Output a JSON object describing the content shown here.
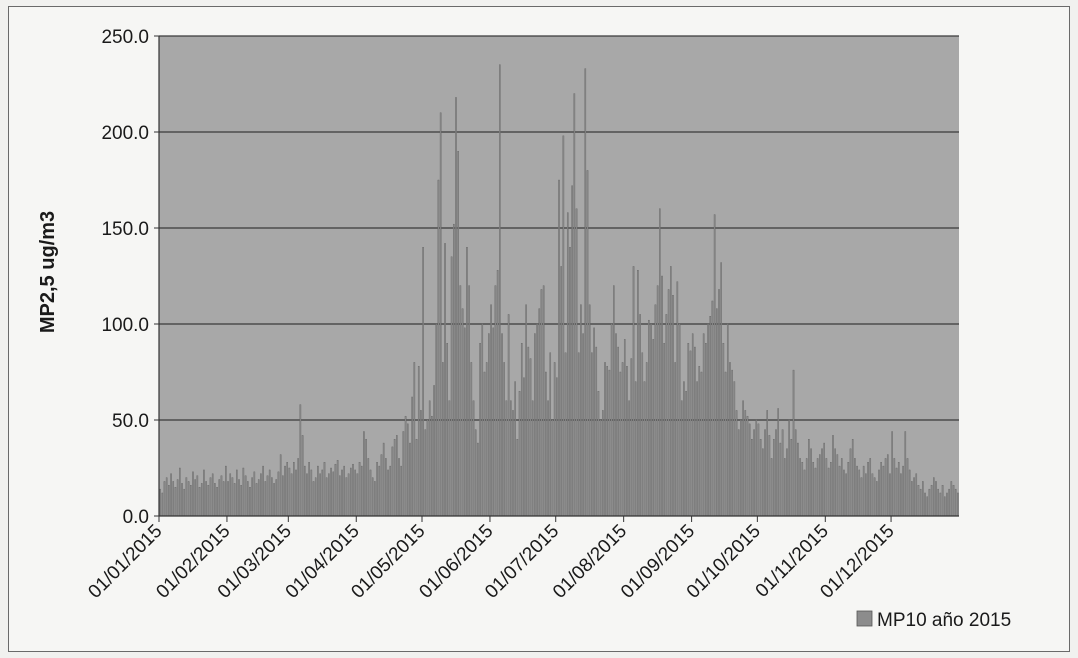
{
  "chart_data": {
    "type": "bar",
    "title": "",
    "xlabel": "",
    "ylabel": "MP2,5 ug/m3",
    "ylim": [
      0,
      250
    ],
    "y_ticks": [
      0,
      50,
      100,
      150,
      200,
      250
    ],
    "y_tick_labels": [
      "0.0",
      "50.0",
      "100.0",
      "150.0",
      "200.0",
      "250.0"
    ],
    "x_tick_labels": [
      "01/01/2015",
      "01/02/2015",
      "01/03/2015",
      "01/04/2015",
      "01/05/2015",
      "01/06/2015",
      "01/07/2015",
      "01/08/2015",
      "01/09/2015",
      "01/10/2015",
      "01/11/2015",
      "01/12/2015"
    ],
    "grid": true,
    "legend_position": "bottom-right",
    "series": [
      {
        "name": "MP10 año 2015",
        "color": "#8c8c8c",
        "monthly_daily_values": [
          [
            14,
            12,
            18,
            20,
            16,
            22,
            18,
            15,
            19,
            25,
            17,
            14,
            20,
            18,
            16,
            23,
            19,
            21,
            15,
            17,
            24,
            18,
            16,
            20,
            22,
            17,
            15,
            19,
            21,
            18,
            26
          ],
          [
            18,
            22,
            20,
            17,
            24,
            19,
            16,
            25,
            21,
            18,
            15,
            20,
            23,
            17,
            19,
            22,
            26,
            18,
            21,
            24,
            20,
            17,
            19,
            23,
            32,
            21,
            26,
            28
          ],
          [
            25,
            22,
            28,
            24,
            30,
            58,
            42,
            26,
            22,
            28,
            24,
            18,
            20,
            26,
            22,
            24,
            28,
            20,
            22,
            25,
            23,
            27,
            29,
            21,
            24,
            26,
            20,
            22,
            25,
            27,
            24
          ],
          [
            22,
            28,
            26,
            44,
            40,
            30,
            24,
            20,
            18,
            28,
            26,
            32,
            38,
            30,
            24,
            26,
            36,
            40,
            42,
            30,
            26,
            44,
            52,
            48,
            38,
            62,
            80,
            40,
            78,
            55
          ],
          [
            140,
            45,
            50,
            60,
            52,
            68,
            100,
            175,
            210,
            80,
            142,
            90,
            60,
            135,
            152,
            218,
            190,
            120,
            108,
            98,
            140,
            120,
            80,
            60,
            45,
            38,
            90,
            100,
            75,
            80,
            95
          ],
          [
            110,
            98,
            120,
            128,
            235,
            95,
            80,
            60,
            105,
            60,
            55,
            70,
            40,
            65,
            90,
            72,
            110,
            88,
            82,
            60,
            95,
            100,
            108,
            118,
            120,
            75,
            60,
            85,
            50,
            80
          ],
          [
            72,
            175,
            130,
            198,
            85,
            158,
            140,
            172,
            220,
            160,
            85,
            110,
            95,
            233,
            180,
            110,
            85,
            98,
            88,
            65,
            50,
            55,
            80,
            78,
            76,
            100,
            120,
            95,
            88,
            75,
            80
          ],
          [
            92,
            78,
            60,
            82,
            130,
            70,
            128,
            105,
            85,
            70,
            80,
            102,
            100,
            92,
            110,
            120,
            160,
            125,
            90,
            105,
            118,
            130,
            115,
            80,
            122,
            100,
            60,
            70,
            65,
            90,
            86
          ],
          [
            95,
            88,
            70,
            78,
            75,
            95,
            90,
            100,
            104,
            112,
            157,
            108,
            118,
            132,
            90,
            75,
            100,
            80,
            76,
            70,
            55,
            45,
            50,
            60,
            55,
            52,
            48,
            40,
            45,
            50
          ],
          [
            48,
            40,
            35,
            45,
            55,
            42,
            30,
            40,
            45,
            56,
            38,
            45,
            30,
            35,
            50,
            40,
            76,
            45,
            38,
            30,
            28,
            24,
            30,
            40,
            35,
            28,
            25,
            30,
            32,
            35,
            38
          ],
          [
            30,
            25,
            28,
            42,
            35,
            32,
            26,
            30,
            24,
            22,
            28,
            35,
            40,
            30,
            26,
            24,
            20,
            26,
            22,
            28,
            30,
            22,
            20,
            18,
            24,
            28,
            26,
            30,
            32,
            22
          ],
          [
            44,
            30,
            25,
            28,
            22,
            26,
            44,
            30,
            24,
            18,
            20,
            22,
            16,
            14,
            18,
            12,
            10,
            14,
            16,
            20,
            18,
            14,
            12,
            16,
            10,
            12,
            14,
            18,
            16,
            14,
            12
          ]
        ]
      }
    ]
  }
}
